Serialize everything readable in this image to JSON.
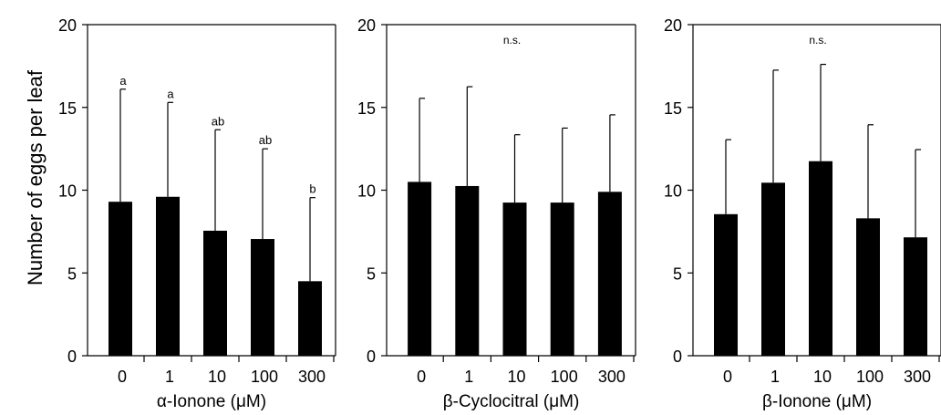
{
  "figure": {
    "ylabel": "Number of eggs per leaf"
  },
  "chart_data": [
    {
      "type": "bar",
      "xlabel": "α-Ionone (μM)",
      "ylabel": "Number of eggs per leaf",
      "categories": [
        "0",
        "1",
        "10",
        "100",
        "300"
      ],
      "values": [
        9.3,
        9.6,
        7.55,
        7.05,
        4.5
      ],
      "error_upper": [
        16.1,
        15.3,
        13.65,
        12.5,
        9.55
      ],
      "annotations": [
        "a",
        "a",
        "ab",
        "ab",
        "b"
      ],
      "ylim": [
        0,
        20
      ],
      "yticks": [
        0,
        5,
        10,
        15,
        20
      ]
    },
    {
      "type": "bar",
      "xlabel": "β-Cyclocitral (μM)",
      "ylabel": "",
      "categories": [
        "0",
        "1",
        "10",
        "100",
        "300"
      ],
      "values": [
        10.5,
        10.25,
        9.25,
        9.25,
        9.9
      ],
      "error_upper": [
        15.55,
        16.25,
        13.35,
        13.75,
        14.55
      ],
      "note": "n.s.",
      "ylim": [
        0,
        20
      ],
      "yticks": [
        0,
        5,
        10,
        15,
        20
      ]
    },
    {
      "type": "bar",
      "xlabel": "β-Ionone (μM)",
      "ylabel": "",
      "categories": [
        "0",
        "1",
        "10",
        "100",
        "300"
      ],
      "values": [
        8.55,
        10.45,
        11.75,
        8.3,
        7.15
      ],
      "error_upper": [
        13.05,
        17.25,
        17.6,
        13.95,
        12.45
      ],
      "note": "n.s.",
      "ylim": [
        0,
        20
      ],
      "yticks": [
        0,
        5,
        10,
        15,
        20
      ]
    }
  ]
}
